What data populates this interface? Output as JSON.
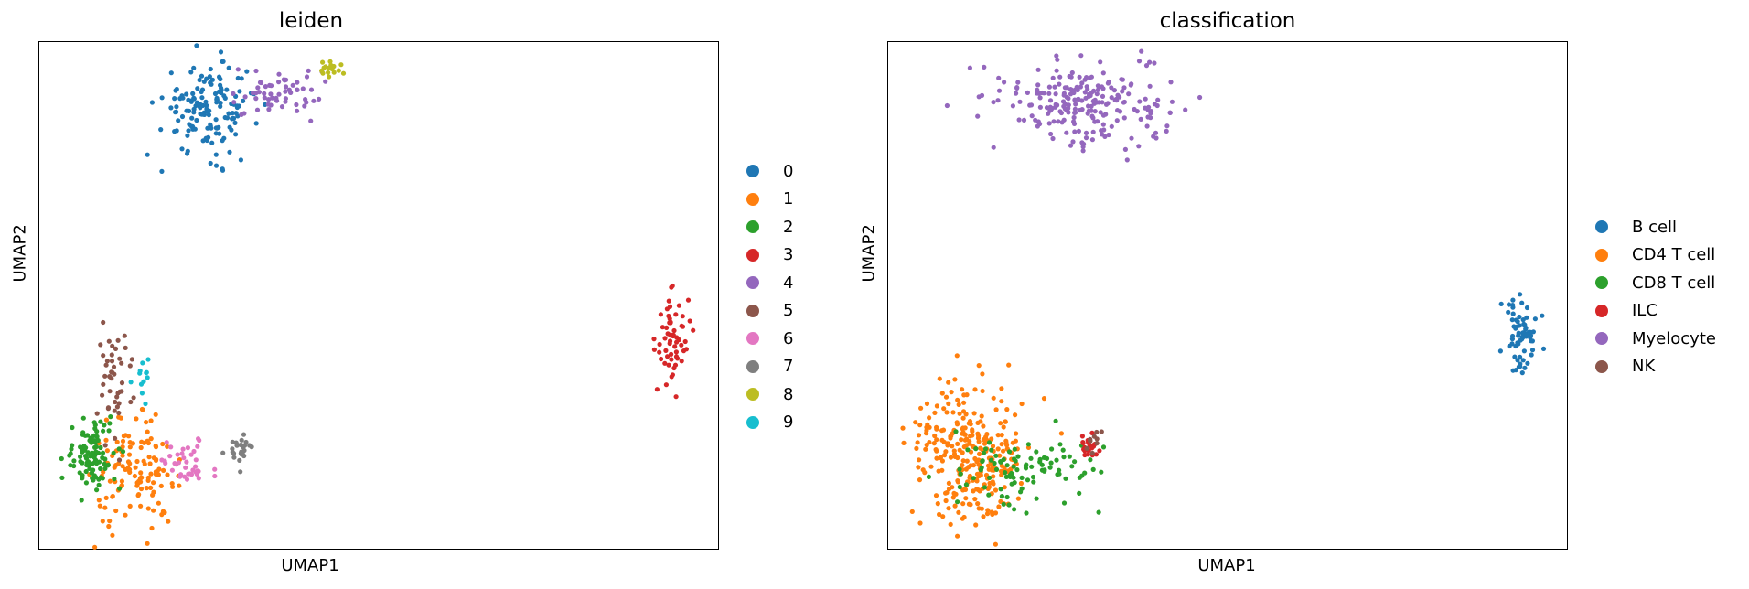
{
  "chart_data": [
    {
      "type": "scatter",
      "title": "leiden",
      "xlabel": "UMAP1",
      "ylabel": "UMAP2",
      "xlim": [
        0,
        100
      ],
      "ylim": [
        0,
        100
      ],
      "grid": false,
      "legend_position": "right-outside",
      "series": [
        {
          "name": "0",
          "color": "#1f77b4",
          "center": [
            25,
            87
          ],
          "spread": [
            3.5,
            4.5
          ],
          "n": 150
        },
        {
          "name": "1",
          "color": "#ff7f0e",
          "center": [
            14,
            15
          ],
          "spread": [
            3.0,
            5.0
          ],
          "n": 130
        },
        {
          "name": "2",
          "color": "#2ca02c",
          "center": [
            8,
            19
          ],
          "spread": [
            2.0,
            3.5
          ],
          "n": 100
        },
        {
          "name": "3",
          "color": "#d62728",
          "center": [
            93,
            42
          ],
          "spread": [
            1.2,
            4.5
          ],
          "n": 60
        },
        {
          "name": "4",
          "color": "#9467bd",
          "center": [
            35,
            90
          ],
          "spread": [
            3.0,
            2.5
          ],
          "n": 60
        },
        {
          "name": "5",
          "color": "#8c564b",
          "center": [
            11,
            34
          ],
          "spread": [
            1.5,
            5.5
          ],
          "n": 45
        },
        {
          "name": "6",
          "color": "#e377c2",
          "center": [
            21.5,
            17
          ],
          "spread": [
            2.0,
            2.5
          ],
          "n": 40
        },
        {
          "name": "7",
          "color": "#7f7f7f",
          "center": [
            29.5,
            20
          ],
          "spread": [
            1.0,
            1.5
          ],
          "n": 25
        },
        {
          "name": "8",
          "color": "#bcbd22",
          "center": [
            43.5,
            94.5
          ],
          "spread": [
            1.8,
            0.8
          ],
          "n": 18
        },
        {
          "name": "9",
          "color": "#17becf",
          "center": [
            15,
            34
          ],
          "spread": [
            0.6,
            2.5
          ],
          "n": 12
        }
      ],
      "legend": [
        "0",
        "1",
        "2",
        "3",
        "4",
        "5",
        "6",
        "7",
        "8",
        "9"
      ]
    },
    {
      "type": "scatter",
      "title": "classification",
      "xlabel": "UMAP1",
      "ylabel": "UMAP2",
      "xlim": [
        0,
        100
      ],
      "ylim": [
        0,
        100
      ],
      "grid": false,
      "legend_position": "right-outside",
      "series": [
        {
          "name": "B cell",
          "color": "#1f77b4",
          "center": [
            93,
            43
          ],
          "spread": [
            1.2,
            4.5
          ],
          "n": 70
        },
        {
          "name": "CD4 T cell",
          "color": "#ff7f0e",
          "center": [
            12,
            19
          ],
          "spread": [
            4.0,
            7.0
          ],
          "n": 290
        },
        {
          "name": "CD8 T cell",
          "color": "#2ca02c",
          "center": [
            20,
            16
          ],
          "spread": [
            5.0,
            3.0
          ],
          "n": 100
        },
        {
          "name": "ILC",
          "color": "#d62728",
          "center": [
            29,
            20
          ],
          "spread": [
            1.0,
            1.5
          ],
          "n": 25
        },
        {
          "name": "Myelocyte",
          "color": "#9467bd",
          "center": [
            29,
            88
          ],
          "spread": [
            6.0,
            4.0
          ],
          "n": 230
        },
        {
          "name": "NK",
          "color": "#8c564b",
          "center": [
            30,
            21
          ],
          "spread": [
            0.6,
            1.2
          ],
          "n": 10
        }
      ],
      "legend": [
        "B cell",
        "CD4 T cell",
        "CD8 T cell",
        "ILC",
        "Myelocyte",
        "NK"
      ]
    }
  ]
}
